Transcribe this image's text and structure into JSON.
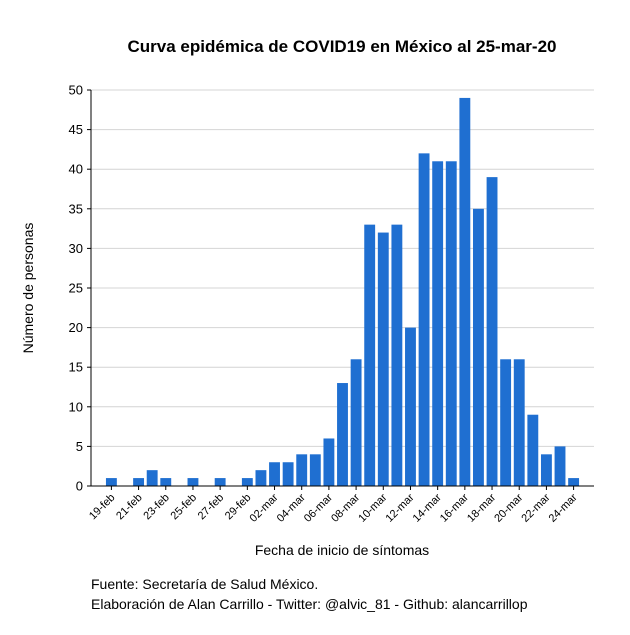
{
  "colors": {
    "bar": "#1f6fd1",
    "grid": "#d4d4d4",
    "axis": "#000000"
  },
  "footer": {
    "source": "Fuente: Secretaría de Salud México.",
    "credit": "Elaboración de Alan Carrillo - Twitter: @alvic_81 - Github: alancarrillop"
  },
  "chart_data": {
    "type": "bar",
    "title": "Curva epidémica de COVID19 en México al 25-mar-20",
    "xlabel": "Fecha de inicio de síntomas",
    "ylabel": "Número de personas",
    "ylim": [
      0,
      50
    ],
    "yticks": [
      0,
      5,
      10,
      15,
      20,
      25,
      30,
      35,
      40,
      45,
      50
    ],
    "grid": "horizontal",
    "categories": [
      "18-feb",
      "19-feb",
      "20-feb",
      "21-feb",
      "22-feb",
      "23-feb",
      "24-feb",
      "25-feb",
      "26-feb",
      "27-feb",
      "28-feb",
      "29-feb",
      "01-mar",
      "02-mar",
      "03-mar",
      "04-mar",
      "05-mar",
      "06-mar",
      "07-mar",
      "08-mar",
      "09-mar",
      "10-mar",
      "11-mar",
      "12-mar",
      "13-mar",
      "14-mar",
      "15-mar",
      "16-mar",
      "17-mar",
      "18-mar",
      "19-mar",
      "20-mar",
      "21-mar",
      "22-mar",
      "23-mar",
      "24-mar",
      "25-mar"
    ],
    "tick_labels": [
      "19-feb",
      "21-feb",
      "23-feb",
      "25-feb",
      "27-feb",
      "29-feb",
      "02-mar",
      "04-mar",
      "06-mar",
      "08-mar",
      "10-mar",
      "12-mar",
      "14-mar",
      "16-mar",
      "18-mar",
      "20-mar",
      "22-mar",
      "24-mar"
    ],
    "values": [
      0,
      1,
      0,
      1,
      2,
      1,
      0,
      1,
      0,
      1,
      0,
      1,
      2,
      3,
      3,
      4,
      4,
      6,
      13,
      16,
      33,
      32,
      33,
      20,
      42,
      41,
      41,
      49,
      35,
      39,
      16,
      16,
      9,
      4,
      5,
      1,
      0
    ]
  }
}
